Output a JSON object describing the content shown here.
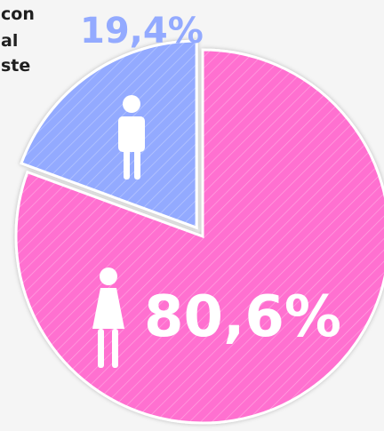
{
  "header_fragment": {
    "lines": [
      "con",
      "al",
      "ste"
    ]
  },
  "chart_data": {
    "type": "pie",
    "slices": [
      {
        "value": 80.6,
        "label": "80,6%",
        "color": "#ff6fd0",
        "icon": "female-icon"
      },
      {
        "value": 19.4,
        "label": "19,4%",
        "color": "#93aaff",
        "icon": "male-icon"
      }
    ],
    "exploded_slice": "19,4%",
    "pattern": "diagonal-hatch"
  }
}
